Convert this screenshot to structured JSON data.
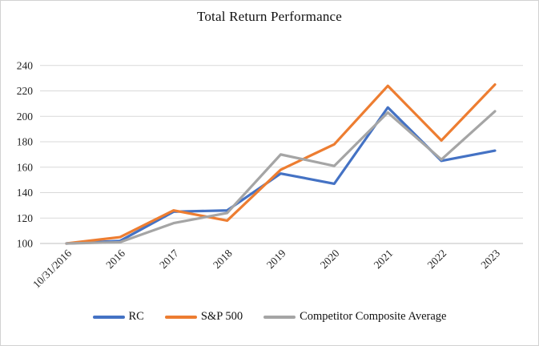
{
  "chart_data": {
    "type": "line",
    "title": "Total Return Performance",
    "categories": [
      "10/31/2016",
      "2016",
      "2017",
      "2018",
      "2019",
      "2020",
      "2021",
      "2022",
      "2023"
    ],
    "series": [
      {
        "name": "RC",
        "color": "#4472C4",
        "values": [
          100,
          102,
          125,
          126,
          155,
          147,
          207,
          165,
          173
        ]
      },
      {
        "name": "S&P 500",
        "color": "#ED7D31",
        "values": [
          100,
          105,
          126,
          118,
          158,
          178,
          224,
          181,
          225
        ]
      },
      {
        "name": "Competitor Composite Average",
        "color": "#A5A5A5",
        "values": [
          100,
          101,
          116,
          124,
          170,
          161,
          203,
          166,
          204
        ]
      }
    ],
    "y_axis": {
      "min": 100,
      "max": 240,
      "step": 20,
      "tick_labels": [
        "240",
        "220",
        "200",
        "180",
        "160",
        "140",
        "120",
        "100"
      ]
    },
    "x_axis": {
      "tick_labels": [
        "10/31/2016",
        "2016",
        "2017",
        "2018",
        "2019",
        "2020",
        "2021",
        "2022",
        "2023"
      ]
    },
    "legend_position": "bottom",
    "grid": "horizontal",
    "colors": {
      "gridline": "#D9D9D9",
      "axis_line": "#BFBFBF",
      "tick_text": "#1f1f1f",
      "title_text": "#111111"
    }
  }
}
